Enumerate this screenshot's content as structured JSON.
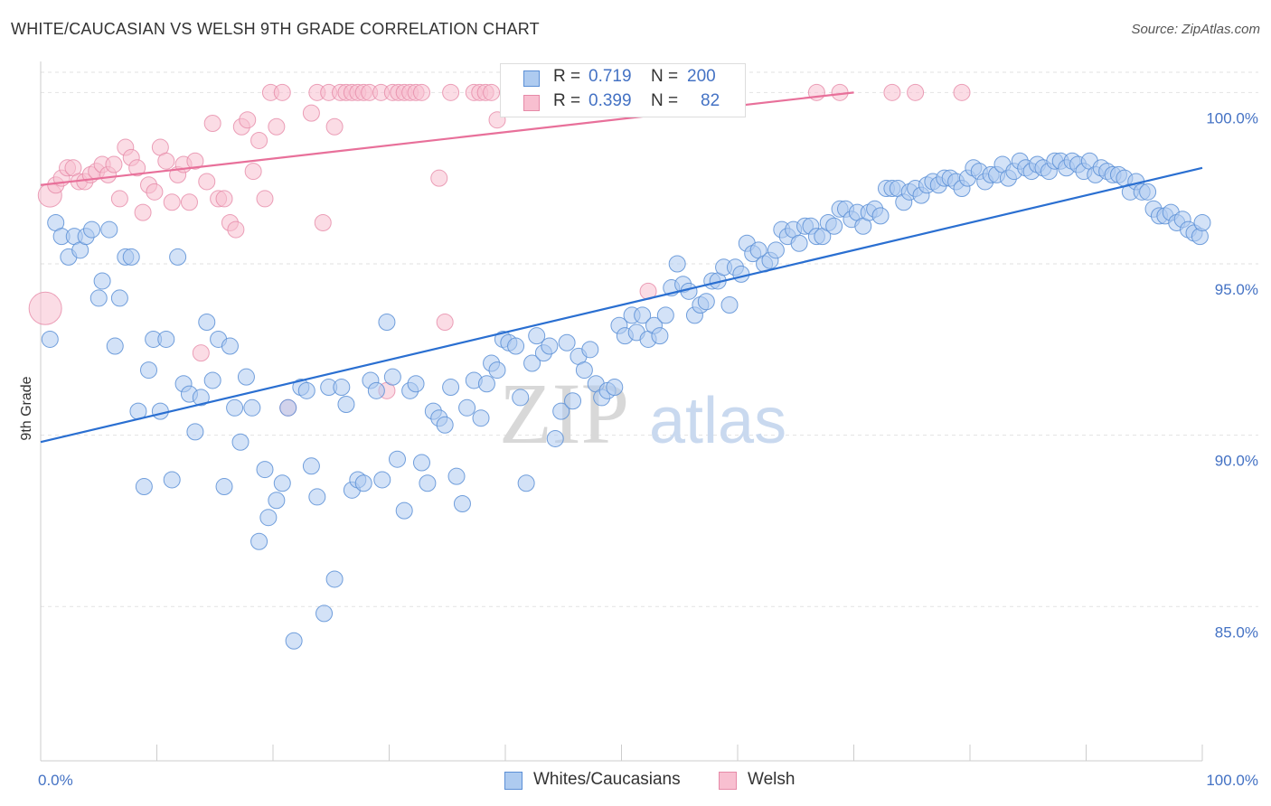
{
  "title": "WHITE/CAUCASIAN VS WELSH 9TH GRADE CORRELATION CHART",
  "source": "Source: ZipAtlas.com",
  "watermark": {
    "zip": "ZIP",
    "atlas": "atlas"
  },
  "legend": {
    "rows": [
      {
        "r_label": "R =",
        "r_value": "0.719",
        "n_label": "N =",
        "n_value": "200"
      },
      {
        "r_label": "R =",
        "r_value": "0.399",
        "n_label": "N =",
        "n_value": "82"
      }
    ]
  },
  "bottom_legend": [
    "Whites/Caucasians",
    "Welsh"
  ],
  "colors": {
    "blue_fill": "#aecbf0",
    "blue_stroke": "#5b8fd6",
    "blue_line": "#2a6fd1",
    "pink_fill": "#f8bfd0",
    "pink_stroke": "#e68aa8",
    "pink_line": "#e8709a",
    "tick_text": "#4472c4",
    "grid": "#e2e2e2"
  },
  "chart_data": {
    "type": "scatter",
    "title": "WHITE/CAUCASIAN VS WELSH 9TH GRADE CORRELATION CHART",
    "xlabel": "",
    "ylabel": "9th Grade",
    "xlim": [
      0,
      100
    ],
    "ylim": [
      80.5,
      100.8
    ],
    "x_ticks": [
      "0.0%",
      "100.0%"
    ],
    "y_ticks": [
      {
        "value": 85,
        "label": "85.0%"
      },
      {
        "value": 90,
        "label": "90.0%"
      },
      {
        "value": 95,
        "label": "95.0%"
      },
      {
        "value": 100,
        "label": "100.0%"
      }
    ],
    "grid": true,
    "legend_position": "top-center",
    "series": [
      {
        "name": "Whites/Caucasians",
        "R": 0.719,
        "N": 200,
        "trend": [
          [
            0,
            89.8
          ],
          [
            100,
            97.8
          ]
        ],
        "points": [
          [
            0.8,
            92.8
          ],
          [
            1.3,
            96.2
          ],
          [
            1.8,
            95.8
          ],
          [
            2.4,
            95.2
          ],
          [
            2.9,
            95.8
          ],
          [
            3.4,
            95.4
          ],
          [
            3.9,
            95.8
          ],
          [
            4.4,
            96.0
          ],
          [
            5.0,
            94.0
          ],
          [
            5.3,
            94.5
          ],
          [
            5.9,
            96.0
          ],
          [
            6.4,
            92.6
          ],
          [
            6.8,
            94.0
          ],
          [
            7.3,
            95.2
          ],
          [
            7.8,
            95.2
          ],
          [
            8.4,
            90.7
          ],
          [
            8.9,
            88.5
          ],
          [
            9.3,
            91.9
          ],
          [
            9.7,
            92.8
          ],
          [
            10.3,
            90.7
          ],
          [
            10.8,
            92.8
          ],
          [
            11.3,
            88.7
          ],
          [
            11.8,
            95.2
          ],
          [
            12.3,
            91.5
          ],
          [
            12.8,
            91.2
          ],
          [
            13.3,
            90.1
          ],
          [
            13.8,
            91.1
          ],
          [
            14.3,
            93.3
          ],
          [
            14.8,
            91.6
          ],
          [
            15.3,
            92.8
          ],
          [
            15.8,
            88.5
          ],
          [
            16.3,
            92.6
          ],
          [
            16.7,
            90.8
          ],
          [
            17.2,
            89.8
          ],
          [
            17.7,
            91.7
          ],
          [
            18.2,
            90.8
          ],
          [
            18.8,
            86.9
          ],
          [
            19.3,
            89.0
          ],
          [
            19.6,
            87.6
          ],
          [
            20.3,
            88.1
          ],
          [
            20.8,
            88.6
          ],
          [
            21.3,
            90.8
          ],
          [
            21.8,
            84.0
          ],
          [
            22.4,
            91.4
          ],
          [
            22.9,
            91.3
          ],
          [
            23.3,
            89.1
          ],
          [
            23.8,
            88.2
          ],
          [
            24.4,
            84.8
          ],
          [
            24.8,
            91.4
          ],
          [
            25.3,
            85.8
          ],
          [
            25.9,
            91.4
          ],
          [
            26.3,
            90.9
          ],
          [
            26.8,
            88.4
          ],
          [
            27.3,
            88.7
          ],
          [
            27.8,
            88.6
          ],
          [
            28.4,
            91.6
          ],
          [
            28.9,
            91.3
          ],
          [
            29.4,
            88.7
          ],
          [
            29.8,
            93.3
          ],
          [
            30.3,
            91.7
          ],
          [
            30.7,
            89.3
          ],
          [
            31.3,
            87.8
          ],
          [
            31.8,
            91.3
          ],
          [
            32.3,
            91.5
          ],
          [
            32.8,
            89.2
          ],
          [
            33.3,
            88.6
          ],
          [
            33.8,
            90.7
          ],
          [
            34.3,
            90.5
          ],
          [
            34.8,
            90.3
          ],
          [
            35.3,
            91.4
          ],
          [
            35.8,
            88.8
          ],
          [
            36.3,
            88.0
          ],
          [
            36.7,
            90.8
          ],
          [
            37.3,
            91.6
          ],
          [
            37.9,
            90.5
          ],
          [
            38.4,
            91.5
          ],
          [
            38.8,
            92.1
          ],
          [
            39.3,
            91.9
          ],
          [
            39.8,
            92.8
          ],
          [
            40.3,
            92.7
          ],
          [
            40.9,
            92.6
          ],
          [
            41.3,
            91.1
          ],
          [
            41.8,
            88.6
          ],
          [
            42.3,
            92.1
          ],
          [
            42.7,
            92.9
          ],
          [
            43.3,
            92.4
          ],
          [
            43.8,
            92.6
          ],
          [
            44.3,
            89.9
          ],
          [
            44.8,
            90.7
          ],
          [
            45.3,
            92.7
          ],
          [
            45.8,
            91.0
          ],
          [
            46.3,
            92.3
          ],
          [
            46.8,
            91.9
          ],
          [
            47.3,
            92.5
          ],
          [
            47.8,
            91.5
          ],
          [
            48.3,
            91.1
          ],
          [
            48.8,
            91.3
          ],
          [
            49.4,
            91.4
          ],
          [
            49.8,
            93.2
          ],
          [
            50.3,
            92.9
          ],
          [
            50.9,
            93.5
          ],
          [
            51.3,
            93.0
          ],
          [
            51.8,
            93.5
          ],
          [
            52.3,
            92.8
          ],
          [
            52.8,
            93.2
          ],
          [
            53.3,
            92.9
          ],
          [
            53.8,
            93.5
          ],
          [
            54.3,
            94.3
          ],
          [
            54.8,
            95.0
          ],
          [
            55.3,
            94.4
          ],
          [
            55.8,
            94.2
          ],
          [
            56.3,
            93.5
          ],
          [
            56.8,
            93.8
          ],
          [
            57.3,
            93.9
          ],
          [
            57.8,
            94.5
          ],
          [
            58.3,
            94.5
          ],
          [
            58.8,
            94.9
          ],
          [
            59.3,
            93.8
          ],
          [
            59.8,
            94.9
          ],
          [
            60.3,
            94.7
          ],
          [
            60.8,
            95.6
          ],
          [
            61.3,
            95.3
          ],
          [
            61.8,
            95.4
          ],
          [
            62.3,
            95.0
          ],
          [
            62.8,
            95.1
          ],
          [
            63.3,
            95.4
          ],
          [
            63.8,
            96.0
          ],
          [
            64.3,
            95.8
          ],
          [
            64.8,
            96.0
          ],
          [
            65.3,
            95.6
          ],
          [
            65.8,
            96.1
          ],
          [
            66.3,
            96.1
          ],
          [
            66.8,
            95.8
          ],
          [
            67.3,
            95.8
          ],
          [
            67.8,
            96.2
          ],
          [
            68.3,
            96.1
          ],
          [
            68.8,
            96.6
          ],
          [
            69.3,
            96.6
          ],
          [
            69.8,
            96.3
          ],
          [
            70.3,
            96.5
          ],
          [
            70.8,
            96.1
          ],
          [
            71.3,
            96.5
          ],
          [
            71.8,
            96.6
          ],
          [
            72.3,
            96.4
          ],
          [
            72.8,
            97.2
          ],
          [
            73.3,
            97.2
          ],
          [
            73.8,
            97.2
          ],
          [
            74.3,
            96.8
          ],
          [
            74.8,
            97.1
          ],
          [
            75.3,
            97.2
          ],
          [
            75.8,
            97.0
          ],
          [
            76.3,
            97.3
          ],
          [
            76.8,
            97.4
          ],
          [
            77.3,
            97.3
          ],
          [
            77.8,
            97.5
          ],
          [
            78.3,
            97.5
          ],
          [
            78.8,
            97.4
          ],
          [
            79.3,
            97.2
          ],
          [
            79.8,
            97.5
          ],
          [
            80.3,
            97.8
          ],
          [
            80.8,
            97.7
          ],
          [
            81.3,
            97.4
          ],
          [
            81.8,
            97.6
          ],
          [
            82.3,
            97.6
          ],
          [
            82.8,
            97.9
          ],
          [
            83.3,
            97.5
          ],
          [
            83.8,
            97.7
          ],
          [
            84.3,
            98.0
          ],
          [
            84.8,
            97.8
          ],
          [
            85.3,
            97.7
          ],
          [
            85.8,
            97.9
          ],
          [
            86.3,
            97.8
          ],
          [
            86.8,
            97.7
          ],
          [
            87.3,
            98.0
          ],
          [
            87.8,
            98.0
          ],
          [
            88.3,
            97.8
          ],
          [
            88.8,
            98.0
          ],
          [
            89.3,
            97.9
          ],
          [
            89.8,
            97.7
          ],
          [
            90.3,
            98.0
          ],
          [
            90.8,
            97.6
          ],
          [
            91.3,
            97.8
          ],
          [
            91.8,
            97.7
          ],
          [
            92.3,
            97.6
          ],
          [
            92.8,
            97.6
          ],
          [
            93.3,
            97.5
          ],
          [
            93.8,
            97.1
          ],
          [
            94.3,
            97.4
          ],
          [
            94.8,
            97.1
          ],
          [
            95.3,
            97.1
          ],
          [
            95.8,
            96.6
          ],
          [
            96.3,
            96.4
          ],
          [
            96.8,
            96.4
          ],
          [
            97.3,
            96.5
          ],
          [
            97.8,
            96.2
          ],
          [
            98.3,
            96.3
          ],
          [
            98.8,
            96.0
          ],
          [
            99.3,
            95.9
          ],
          [
            99.8,
            95.8
          ],
          [
            100.0,
            96.2
          ]
        ]
      },
      {
        "name": "Welsh",
        "R": 0.399,
        "N": 82,
        "trend": [
          [
            0,
            97.3
          ],
          [
            70,
            100.0
          ]
        ],
        "points": [
          [
            0.4,
            93.7
          ],
          [
            0.8,
            97.0
          ],
          [
            1.3,
            97.3
          ],
          [
            1.8,
            97.5
          ],
          [
            2.3,
            97.8
          ],
          [
            2.8,
            97.8
          ],
          [
            3.3,
            97.4
          ],
          [
            3.8,
            97.4
          ],
          [
            4.3,
            97.6
          ],
          [
            4.8,
            97.7
          ],
          [
            5.3,
            97.9
          ],
          [
            5.8,
            97.6
          ],
          [
            6.3,
            97.9
          ],
          [
            6.8,
            96.9
          ],
          [
            7.3,
            98.4
          ],
          [
            7.8,
            98.1
          ],
          [
            8.3,
            97.8
          ],
          [
            8.8,
            96.5
          ],
          [
            9.3,
            97.3
          ],
          [
            9.8,
            97.1
          ],
          [
            10.3,
            98.4
          ],
          [
            10.8,
            98.0
          ],
          [
            11.3,
            96.8
          ],
          [
            11.8,
            97.6
          ],
          [
            12.3,
            97.9
          ],
          [
            12.8,
            96.8
          ],
          [
            13.3,
            98.0
          ],
          [
            13.8,
            92.4
          ],
          [
            14.3,
            97.4
          ],
          [
            14.8,
            99.1
          ],
          [
            15.3,
            96.9
          ],
          [
            15.8,
            96.9
          ],
          [
            16.3,
            96.2
          ],
          [
            16.8,
            96.0
          ],
          [
            17.3,
            99.0
          ],
          [
            17.8,
            99.2
          ],
          [
            18.3,
            97.7
          ],
          [
            18.8,
            98.6
          ],
          [
            19.3,
            96.9
          ],
          [
            19.8,
            100.0
          ],
          [
            20.3,
            99.0
          ],
          [
            20.8,
            100.0
          ],
          [
            21.3,
            90.8
          ],
          [
            23.3,
            99.4
          ],
          [
            23.8,
            100.0
          ],
          [
            24.3,
            96.2
          ],
          [
            24.8,
            100.0
          ],
          [
            25.3,
            99.0
          ],
          [
            25.8,
            100.0
          ],
          [
            26.3,
            100.0
          ],
          [
            26.8,
            100.0
          ],
          [
            27.3,
            100.0
          ],
          [
            27.8,
            100.0
          ],
          [
            28.3,
            100.0
          ],
          [
            29.3,
            100.0
          ],
          [
            29.8,
            91.3
          ],
          [
            30.3,
            100.0
          ],
          [
            30.8,
            100.0
          ],
          [
            31.3,
            100.0
          ],
          [
            31.8,
            100.0
          ],
          [
            32.3,
            100.0
          ],
          [
            32.8,
            100.0
          ],
          [
            34.3,
            97.5
          ],
          [
            34.8,
            93.3
          ],
          [
            35.3,
            100.0
          ],
          [
            37.3,
            100.0
          ],
          [
            37.8,
            100.0
          ],
          [
            38.3,
            100.0
          ],
          [
            38.8,
            100.0
          ],
          [
            39.3,
            99.2
          ],
          [
            40.3,
            100.0
          ],
          [
            41.3,
            100.0
          ],
          [
            42.8,
            100.0
          ],
          [
            44.8,
            100.0
          ],
          [
            47.8,
            100.0
          ],
          [
            52.3,
            94.2
          ],
          [
            55.3,
            100.0
          ],
          [
            66.8,
            100.0
          ],
          [
            68.8,
            100.0
          ],
          [
            73.3,
            100.0
          ],
          [
            75.3,
            100.0
          ],
          [
            79.3,
            100.0
          ]
        ]
      }
    ]
  }
}
